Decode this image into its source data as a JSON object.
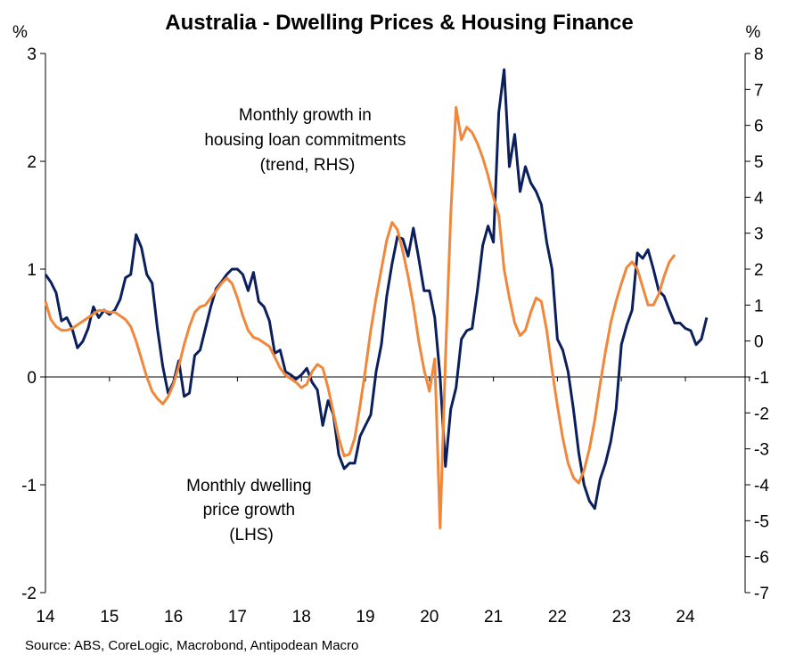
{
  "chart_data": {
    "type": "line",
    "title": "Australia - Dwelling Prices & Housing Finance",
    "left_axis": {
      "unit": "%",
      "ylim": [
        -2,
        3
      ],
      "ticks": [
        3,
        2,
        1,
        0,
        -1,
        -2
      ]
    },
    "right_axis": {
      "unit": "%",
      "ylim": [
        -7,
        8
      ],
      "ticks": [
        8,
        7,
        6,
        5,
        4,
        3,
        2,
        1,
        0,
        -1,
        -2,
        -3,
        -4,
        -5,
        -6,
        -7
      ]
    },
    "x_axis": {
      "labels": [
        "14",
        "15",
        "16",
        "17",
        "18",
        "19",
        "20",
        "21",
        "22",
        "23",
        "24"
      ],
      "xlim": [
        14,
        24.6
      ]
    },
    "grid": false,
    "series": [
      {
        "name": "Monthly dwelling price growth (LHS)",
        "axis": "left",
        "color": "#0b1f5c",
        "points": [
          [
            14.0,
            0.95
          ],
          [
            14.083,
            0.88
          ],
          [
            14.167,
            0.78
          ],
          [
            14.25,
            0.52
          ],
          [
            14.333,
            0.55
          ],
          [
            14.417,
            0.45
          ],
          [
            14.5,
            0.27
          ],
          [
            14.583,
            0.33
          ],
          [
            14.667,
            0.45
          ],
          [
            14.75,
            0.65
          ],
          [
            14.833,
            0.55
          ],
          [
            14.917,
            0.62
          ],
          [
            15.0,
            0.58
          ],
          [
            15.083,
            0.62
          ],
          [
            15.167,
            0.72
          ],
          [
            15.25,
            0.92
          ],
          [
            15.333,
            0.95
          ],
          [
            15.417,
            1.32
          ],
          [
            15.5,
            1.2
          ],
          [
            15.583,
            0.95
          ],
          [
            15.667,
            0.87
          ],
          [
            15.75,
            0.45
          ],
          [
            15.833,
            0.1
          ],
          [
            15.917,
            -0.15
          ],
          [
            16.0,
            -0.05
          ],
          [
            16.083,
            0.15
          ],
          [
            16.167,
            -0.18
          ],
          [
            16.25,
            -0.15
          ],
          [
            16.333,
            0.2
          ],
          [
            16.417,
            0.25
          ],
          [
            16.5,
            0.45
          ],
          [
            16.583,
            0.65
          ],
          [
            16.667,
            0.82
          ],
          [
            16.75,
            0.88
          ],
          [
            16.833,
            0.95
          ],
          [
            16.917,
            1.0
          ],
          [
            17.0,
            1.0
          ],
          [
            17.083,
            0.95
          ],
          [
            17.167,
            0.8
          ],
          [
            17.25,
            0.97
          ],
          [
            17.333,
            0.7
          ],
          [
            17.417,
            0.65
          ],
          [
            17.5,
            0.52
          ],
          [
            17.583,
            0.22
          ],
          [
            17.667,
            0.25
          ],
          [
            17.75,
            0.05
          ],
          [
            17.833,
            0.02
          ],
          [
            17.917,
            -0.02
          ],
          [
            18.0,
            0.02
          ],
          [
            18.083,
            0.08
          ],
          [
            18.167,
            -0.05
          ],
          [
            18.25,
            -0.12
          ],
          [
            18.333,
            -0.45
          ],
          [
            18.417,
            -0.22
          ],
          [
            18.5,
            -0.35
          ],
          [
            18.583,
            -0.72
          ],
          [
            18.667,
            -0.85
          ],
          [
            18.75,
            -0.8
          ],
          [
            18.833,
            -0.8
          ],
          [
            18.917,
            -0.55
          ],
          [
            19.0,
            -0.45
          ],
          [
            19.083,
            -0.35
          ],
          [
            19.167,
            0.05
          ],
          [
            19.25,
            0.3
          ],
          [
            19.333,
            0.75
          ],
          [
            19.417,
            1.05
          ],
          [
            19.5,
            1.3
          ],
          [
            19.583,
            1.28
          ],
          [
            19.667,
            1.12
          ],
          [
            19.75,
            1.38
          ],
          [
            19.833,
            1.1
          ],
          [
            19.917,
            0.8
          ],
          [
            20.0,
            0.8
          ],
          [
            20.083,
            0.55
          ],
          [
            20.167,
            0.0
          ],
          [
            20.25,
            -0.83
          ],
          [
            20.333,
            -0.3
          ],
          [
            20.417,
            -0.1
          ],
          [
            20.5,
            0.35
          ],
          [
            20.583,
            0.43
          ],
          [
            20.667,
            0.45
          ],
          [
            20.75,
            0.8
          ],
          [
            20.833,
            1.22
          ],
          [
            20.917,
            1.4
          ],
          [
            21.0,
            1.25
          ],
          [
            21.083,
            2.45
          ],
          [
            21.167,
            2.85
          ],
          [
            21.25,
            1.95
          ],
          [
            21.333,
            2.25
          ],
          [
            21.417,
            1.72
          ],
          [
            21.5,
            1.95
          ],
          [
            21.583,
            1.8
          ],
          [
            21.667,
            1.72
          ],
          [
            21.75,
            1.6
          ],
          [
            21.833,
            1.25
          ],
          [
            21.917,
            1.0
          ],
          [
            22.0,
            0.35
          ],
          [
            22.083,
            0.25
          ],
          [
            22.167,
            0.05
          ],
          [
            22.25,
            -0.3
          ],
          [
            22.333,
            -0.7
          ],
          [
            22.417,
            -1.0
          ],
          [
            22.5,
            -1.15
          ],
          [
            22.583,
            -1.22
          ],
          [
            22.667,
            -0.95
          ],
          [
            22.75,
            -0.8
          ],
          [
            22.833,
            -0.6
          ],
          [
            22.917,
            -0.3
          ],
          [
            23.0,
            0.3
          ],
          [
            23.083,
            0.48
          ],
          [
            23.167,
            0.62
          ],
          [
            23.25,
            1.15
          ],
          [
            23.333,
            1.1
          ],
          [
            23.417,
            1.18
          ],
          [
            23.5,
            1.0
          ],
          [
            23.583,
            0.8
          ],
          [
            23.667,
            0.75
          ],
          [
            23.75,
            0.62
          ],
          [
            23.833,
            0.5
          ],
          [
            23.917,
            0.5
          ],
          [
            24.0,
            0.45
          ],
          [
            24.083,
            0.43
          ],
          [
            24.167,
            0.3
          ],
          [
            24.25,
            0.35
          ],
          [
            24.333,
            0.55
          ]
        ]
      },
      {
        "name": "Monthly growth in housing loan commitments (trend, RHS)",
        "axis": "right",
        "color": "#f0873a",
        "points": [
          [
            14.0,
            1.1
          ],
          [
            14.083,
            0.6
          ],
          [
            14.167,
            0.4
          ],
          [
            14.25,
            0.3
          ],
          [
            14.333,
            0.3
          ],
          [
            14.417,
            0.35
          ],
          [
            14.5,
            0.45
          ],
          [
            14.583,
            0.55
          ],
          [
            14.667,
            0.65
          ],
          [
            14.75,
            0.75
          ],
          [
            14.833,
            0.85
          ],
          [
            14.917,
            0.85
          ],
          [
            15.0,
            0.8
          ],
          [
            15.083,
            0.8
          ],
          [
            15.167,
            0.7
          ],
          [
            15.25,
            0.6
          ],
          [
            15.333,
            0.4
          ],
          [
            15.417,
            0.0
          ],
          [
            15.5,
            -0.5
          ],
          [
            15.583,
            -1.0
          ],
          [
            15.667,
            -1.4
          ],
          [
            15.75,
            -1.6
          ],
          [
            15.833,
            -1.75
          ],
          [
            15.917,
            -1.55
          ],
          [
            16.0,
            -1.2
          ],
          [
            16.083,
            -0.7
          ],
          [
            16.167,
            -0.1
          ],
          [
            16.25,
            0.4
          ],
          [
            16.333,
            0.8
          ],
          [
            16.417,
            0.95
          ],
          [
            16.5,
            1.0
          ],
          [
            16.583,
            1.2
          ],
          [
            16.667,
            1.4
          ],
          [
            16.75,
            1.6
          ],
          [
            16.833,
            1.75
          ],
          [
            16.917,
            1.6
          ],
          [
            17.0,
            1.2
          ],
          [
            17.083,
            0.7
          ],
          [
            17.167,
            0.3
          ],
          [
            17.25,
            0.1
          ],
          [
            17.333,
            0.05
          ],
          [
            17.417,
            -0.05
          ],
          [
            17.5,
            -0.15
          ],
          [
            17.583,
            -0.45
          ],
          [
            17.667,
            -0.75
          ],
          [
            17.75,
            -0.95
          ],
          [
            17.833,
            -1.05
          ],
          [
            17.917,
            -1.15
          ],
          [
            18.0,
            -1.3
          ],
          [
            18.083,
            -1.2
          ],
          [
            18.167,
            -0.85
          ],
          [
            18.25,
            -0.65
          ],
          [
            18.333,
            -0.75
          ],
          [
            18.417,
            -1.3
          ],
          [
            18.5,
            -2.0
          ],
          [
            18.583,
            -2.7
          ],
          [
            18.667,
            -3.2
          ],
          [
            18.75,
            -3.15
          ],
          [
            18.833,
            -2.7
          ],
          [
            18.917,
            -1.8
          ],
          [
            19.0,
            -0.8
          ],
          [
            19.083,
            0.3
          ],
          [
            19.167,
            1.2
          ],
          [
            19.25,
            2.0
          ],
          [
            19.333,
            2.8
          ],
          [
            19.417,
            3.3
          ],
          [
            19.5,
            3.1
          ],
          [
            19.583,
            2.5
          ],
          [
            19.667,
            1.8
          ],
          [
            19.75,
            1.0
          ],
          [
            19.833,
            0.0
          ],
          [
            19.917,
            -0.8
          ],
          [
            20.0,
            -1.4
          ],
          [
            20.083,
            -0.5
          ],
          [
            20.167,
            -5.2
          ],
          [
            20.25,
            -0.5
          ],
          [
            20.333,
            3.5
          ],
          [
            20.417,
            6.5
          ],
          [
            20.5,
            5.6
          ],
          [
            20.583,
            5.95
          ],
          [
            20.667,
            5.8
          ],
          [
            20.75,
            5.5
          ],
          [
            20.833,
            5.1
          ],
          [
            20.917,
            4.6
          ],
          [
            21.0,
            4.0
          ],
          [
            21.083,
            3.5
          ],
          [
            21.167,
            2.0
          ],
          [
            21.25,
            1.2
          ],
          [
            21.333,
            0.5
          ],
          [
            21.417,
            0.15
          ],
          [
            21.5,
            0.3
          ],
          [
            21.583,
            0.8
          ],
          [
            21.667,
            1.2
          ],
          [
            21.75,
            1.1
          ],
          [
            21.833,
            0.3
          ],
          [
            21.917,
            -0.8
          ],
          [
            22.0,
            -1.8
          ],
          [
            22.083,
            -2.7
          ],
          [
            22.167,
            -3.4
          ],
          [
            22.25,
            -3.8
          ],
          [
            22.333,
            -3.95
          ],
          [
            22.417,
            -3.6
          ],
          [
            22.5,
            -3.0
          ],
          [
            22.583,
            -2.2
          ],
          [
            22.667,
            -1.2
          ],
          [
            22.75,
            -0.3
          ],
          [
            22.833,
            0.5
          ],
          [
            22.917,
            1.1
          ],
          [
            23.0,
            1.6
          ],
          [
            23.083,
            2.05
          ],
          [
            23.167,
            2.2
          ],
          [
            23.25,
            2.0
          ],
          [
            23.333,
            1.5
          ],
          [
            23.417,
            1.0
          ],
          [
            23.5,
            1.0
          ],
          [
            23.583,
            1.3
          ],
          [
            23.667,
            1.8
          ],
          [
            23.75,
            2.2
          ],
          [
            23.833,
            2.4
          ]
        ]
      }
    ],
    "annotations": [
      {
        "series_index": 1,
        "lines": [
          "Monthly growth in",
          "housing loan commitments",
          "(trend, RHS)"
        ],
        "color": "#f0873a"
      },
      {
        "series_index": 0,
        "lines": [
          "Monthly dwelling",
          "price growth",
          "(LHS)"
        ],
        "color": "#0b1f5c"
      }
    ],
    "source": "Source: ABS, CoreLogic, Macrobond, Antipodean Macro"
  }
}
